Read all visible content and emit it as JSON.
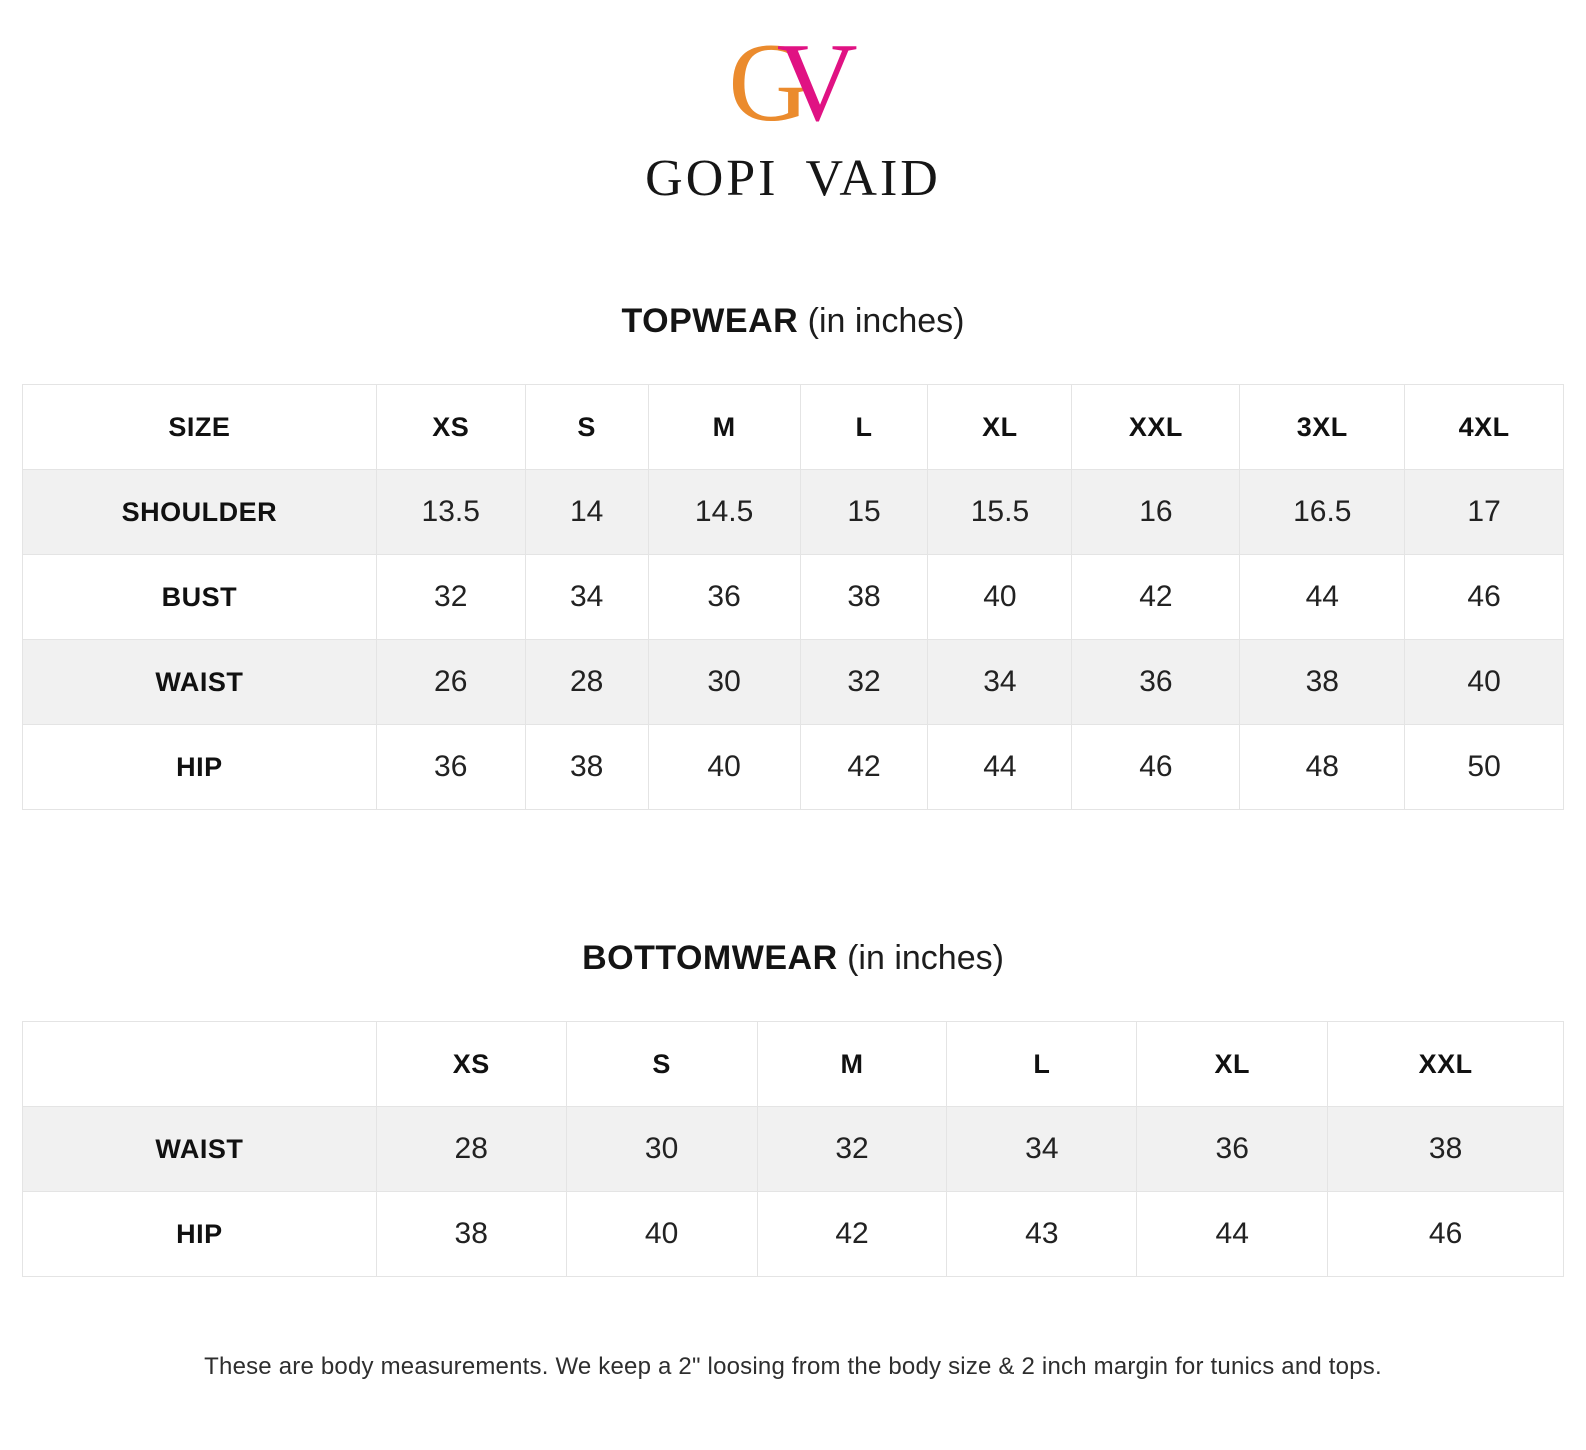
{
  "brand": {
    "monogram": {
      "g": "G",
      "v": "V",
      "g_color": "#EB8B2D",
      "v_color": "#E01283"
    },
    "name": "GOPI VAID"
  },
  "topwear": {
    "title": "TOPWEAR",
    "subtitle": "(in inches)",
    "header": [
      "SIZE",
      "XS",
      "S",
      "M",
      "L",
      "XL",
      "XXL",
      "3XL",
      "4XL"
    ],
    "rows": [
      {
        "label": "SHOULDER",
        "values": [
          "13.5",
          "14",
          "14.5",
          "15",
          "15.5",
          "16",
          "16.5",
          "17"
        ]
      },
      {
        "label": "BUST",
        "values": [
          "32",
          "34",
          "36",
          "38",
          "40",
          "42",
          "44",
          "46"
        ]
      },
      {
        "label": "WAIST",
        "values": [
          "26",
          "28",
          "30",
          "32",
          "34",
          "36",
          "38",
          "40"
        ]
      },
      {
        "label": "HIP",
        "values": [
          "36",
          "38",
          "40",
          "42",
          "44",
          "46",
          "48",
          "50"
        ]
      }
    ]
  },
  "bottomwear": {
    "title": "BOTTOMWEAR",
    "subtitle": "(in inches)",
    "header": [
      "",
      "XS",
      "S",
      "M",
      "L",
      "XL",
      "XXL"
    ],
    "rows": [
      {
        "label": "WAIST",
        "values": [
          "28",
          "30",
          "32",
          "34",
          "36",
          "38"
        ]
      },
      {
        "label": "HIP",
        "values": [
          "38",
          "40",
          "42",
          "43",
          "44",
          "46"
        ]
      }
    ]
  },
  "footer": {
    "note": "These are body measurements. We keep a 2\" loosing from the body size & 2 inch margin for tunics and tops."
  }
}
